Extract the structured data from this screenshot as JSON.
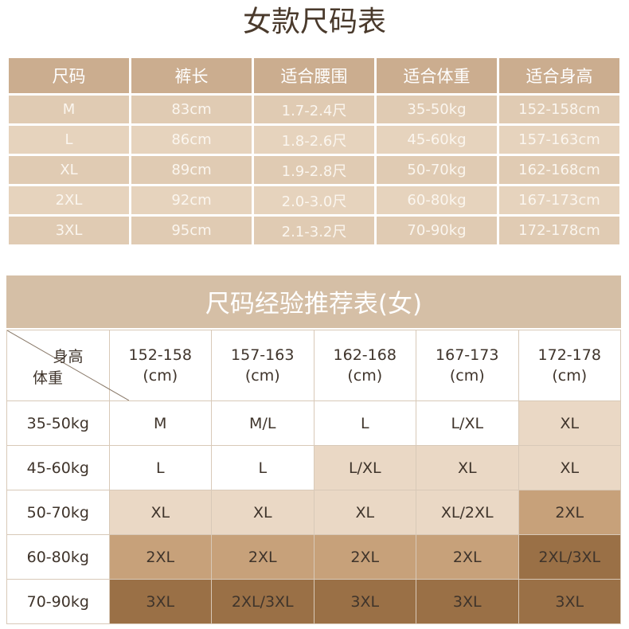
{
  "title1": "女款尺码表",
  "table1": {
    "headers": [
      "尺码",
      "裤长",
      "适合腰围",
      "适合体重",
      "适合身高"
    ],
    "rows": [
      [
        "M",
        "83cm",
        "1.7-2.4尺",
        "35-50kg",
        "152-158cm"
      ],
      [
        "L",
        "86cm",
        "1.8-2.6尺",
        "45-60kg",
        "157-163cm"
      ],
      [
        "XL",
        "89cm",
        "1.9-2.8尺",
        "50-70kg",
        "162-168cm"
      ],
      [
        "2XL",
        "92cm",
        "2.0-3.0尺",
        "60-80kg",
        "167-173cm"
      ],
      [
        "3XL",
        "95cm",
        "2.1-3.2尺",
        "70-90kg",
        "172-178cm"
      ]
    ]
  },
  "table2": {
    "title": "尺码经验推荐表(女)",
    "corner_top": "身高",
    "corner_bottom": "体重",
    "col_headers": [
      {
        "range": "152-158",
        "unit": "(cm)"
      },
      {
        "range": "157-163",
        "unit": "(cm)"
      },
      {
        "range": "162-168",
        "unit": "(cm)"
      },
      {
        "range": "167-173",
        "unit": "(cm)"
      },
      {
        "range": "172-178",
        "unit": "(cm)"
      }
    ],
    "rows": [
      {
        "weight": "35-50kg",
        "cells": [
          "M",
          "M/L",
          "L",
          "L/XL",
          "XL"
        ]
      },
      {
        "weight": "45-60kg",
        "cells": [
          "L",
          "L",
          "L/XL",
          "XL",
          "XL"
        ]
      },
      {
        "weight": "50-70kg",
        "cells": [
          "XL",
          "XL",
          "XL",
          "XL/2XL",
          "2XL"
        ]
      },
      {
        "weight": "60-80kg",
        "cells": [
          "2XL",
          "2XL",
          "2XL",
          "2XL",
          "2XL/3XL"
        ]
      },
      {
        "weight": "70-90kg",
        "cells": [
          "3XL",
          "2XL/3XL",
          "3XL",
          "3XL",
          "3XL"
        ]
      }
    ],
    "cell_colors": [
      [
        "#ffffff",
        "#ffffff",
        "#ffffff",
        "#ffffff",
        "#ead8c5"
      ],
      [
        "#ffffff",
        "#ffffff",
        "#ead8c5",
        "#ead8c5",
        "#ead8c5"
      ],
      [
        "#ead8c5",
        "#ead8c5",
        "#ead8c5",
        "#ead8c5",
        "#c7a17a"
      ],
      [
        "#c7a17a",
        "#c7a17a",
        "#c7a17a",
        "#c7a17a",
        "#9a7046"
      ],
      [
        "#9a7046",
        "#9a7046",
        "#9a7046",
        "#9a7046",
        "#9a7046"
      ]
    ]
  }
}
